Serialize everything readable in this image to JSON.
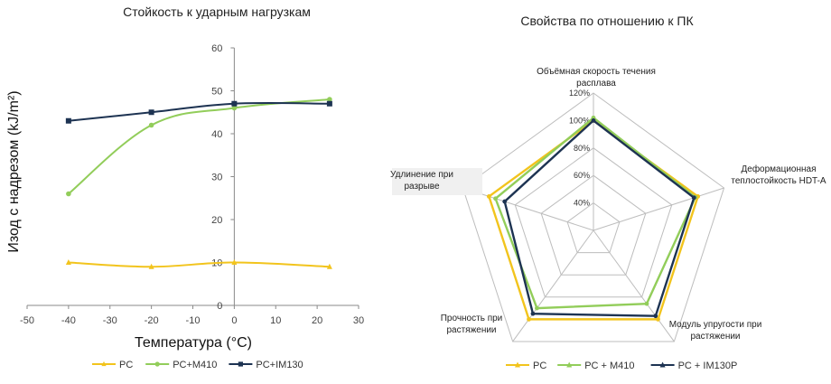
{
  "chart_data": [
    {
      "type": "line",
      "title": "Стойкость к ударным нагрузкам",
      "xlabel": "Температура (°C)",
      "ylabel": "Изод с надрезом (kJ/m²)",
      "xlim": [
        -50,
        30
      ],
      "ylim": [
        0,
        60
      ],
      "x_ticks": [
        "-50",
        "-40",
        "-30",
        "-20",
        "-10",
        "0",
        "10",
        "20",
        "30"
      ],
      "y_ticks": [
        "0",
        "10",
        "20",
        "30",
        "40",
        "50",
        "60"
      ],
      "grid": false,
      "legend_position": "bottom",
      "x": [
        -40,
        -20,
        0,
        23
      ],
      "series": [
        {
          "name": "PC",
          "color": "#F2C41D",
          "marker": "triangle",
          "values": [
            10,
            9,
            10,
            9
          ]
        },
        {
          "name": "PC+M410",
          "color": "#92CD5A",
          "marker": "circle",
          "values": [
            26,
            42,
            46,
            48
          ]
        },
        {
          "name": "PC+IM130",
          "color": "#1D3352",
          "marker": "square",
          "values": [
            43,
            45,
            47,
            47
          ]
        }
      ]
    },
    {
      "type": "radar",
      "title": "Свойства по отношению к ПК",
      "rlim": [
        20,
        120
      ],
      "r_ticks": [
        "40%",
        "60%",
        "80%",
        "100%",
        "120%"
      ],
      "legend_position": "bottom",
      "axes": [
        {
          "lines": [
            "Объёмная скорость течения",
            "расплава"
          ]
        },
        {
          "lines": [
            "Деформационная",
            "теплостойкость HDT-A"
          ]
        },
        {
          "lines": [
            "Модуль упругости при",
            "растяжении"
          ]
        },
        {
          "lines": [
            "Прочность при",
            "растяжении"
          ]
        },
        {
          "lines": [
            "Удлинение при",
            "разрыве"
          ]
        }
      ],
      "series": [
        {
          "name": "PC",
          "color": "#F2C41D",
          "values": [
            100,
            100,
            100,
            100,
            100
          ]
        },
        {
          "name": "PC + M410",
          "color": "#92CD5A",
          "values": [
            102,
            98,
            86,
            90,
            95
          ]
        },
        {
          "name": "PC + IM130P",
          "color": "#1D3352",
          "values": [
            100,
            97,
            97,
            95,
            88
          ]
        }
      ]
    }
  ]
}
